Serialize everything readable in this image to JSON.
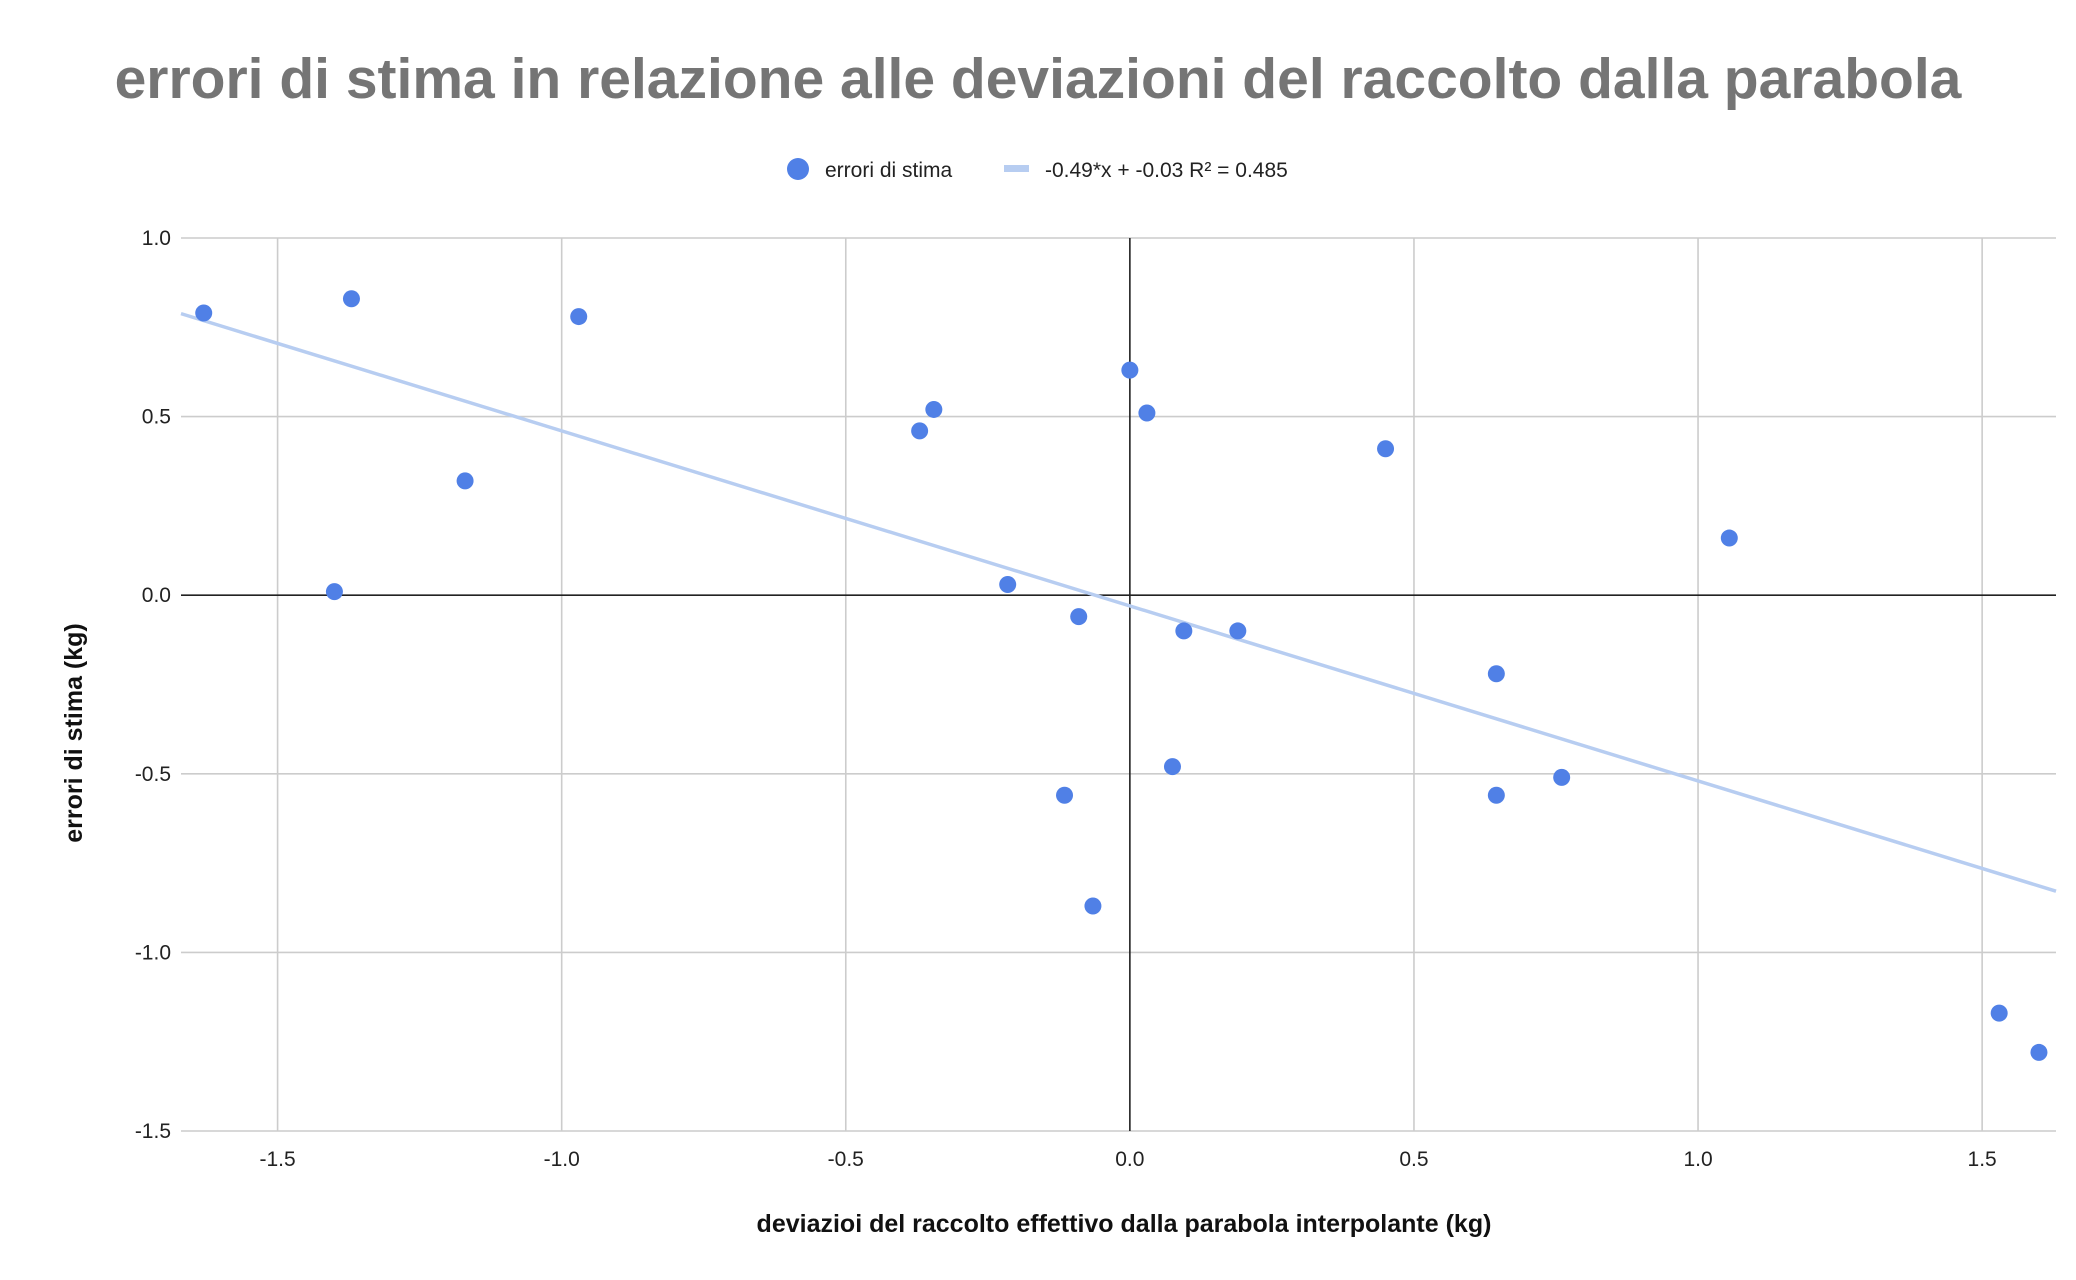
{
  "chart_data": {
    "type": "scatter",
    "title": "errori di stima in relazione alle deviazioni del raccolto dalla parabola",
    "xlabel": "deviazioi del raccolto effettivo dalla parabola interpolante (kg)",
    "ylabel": "errori di stima (kg)",
    "xlim": [
      -1.67,
      1.63
    ],
    "ylim": [
      -1.5,
      1.0
    ],
    "x_ticks": [
      -1.5,
      -1.0,
      -0.5,
      0.0,
      0.5,
      1.0,
      1.5
    ],
    "x_tick_labels": [
      "-1.5",
      "-1.0",
      "-0.5",
      "0.0",
      "0.5",
      "1.0",
      "1.5"
    ],
    "y_ticks": [
      1.0,
      0.5,
      0.0,
      -0.5,
      -1.0,
      -1.5
    ],
    "y_tick_labels": [
      "1.0",
      "0.5",
      "0.0",
      "-0.5",
      "-1.0",
      "-1.5"
    ],
    "grid": true,
    "legend_position": "top-center",
    "series": [
      {
        "name": "errori di stima",
        "color": "#5080e6",
        "points": [
          {
            "x": -1.63,
            "y": 0.79
          },
          {
            "x": -1.37,
            "y": 0.83
          },
          {
            "x": -1.4,
            "y": 0.01
          },
          {
            "x": -1.17,
            "y": 0.32
          },
          {
            "x": -0.97,
            "y": 0.78
          },
          {
            "x": -0.37,
            "y": 0.46
          },
          {
            "x": -0.345,
            "y": 0.52
          },
          {
            "x": -0.215,
            "y": 0.03
          },
          {
            "x": -0.09,
            "y": -0.06
          },
          {
            "x": -0.115,
            "y": -0.56
          },
          {
            "x": -0.065,
            "y": -0.87
          },
          {
            "x": 0.0,
            "y": 0.63
          },
          {
            "x": 0.03,
            "y": 0.51
          },
          {
            "x": 0.095,
            "y": -0.1
          },
          {
            "x": 0.075,
            "y": -0.48
          },
          {
            "x": 0.19,
            "y": -0.1
          },
          {
            "x": 0.45,
            "y": 0.41
          },
          {
            "x": 0.645,
            "y": -0.22
          },
          {
            "x": 0.645,
            "y": -0.56
          },
          {
            "x": 0.76,
            "y": -0.51
          },
          {
            "x": 1.055,
            "y": 0.16
          },
          {
            "x": 1.53,
            "y": -1.17
          },
          {
            "x": 1.6,
            "y": -1.28
          }
        ]
      }
    ],
    "trendline": {
      "name": "-0.49*x + -0.03 R² = 0.485",
      "slope": -0.49,
      "intercept": -0.03,
      "color": "#b7cdf1"
    }
  }
}
